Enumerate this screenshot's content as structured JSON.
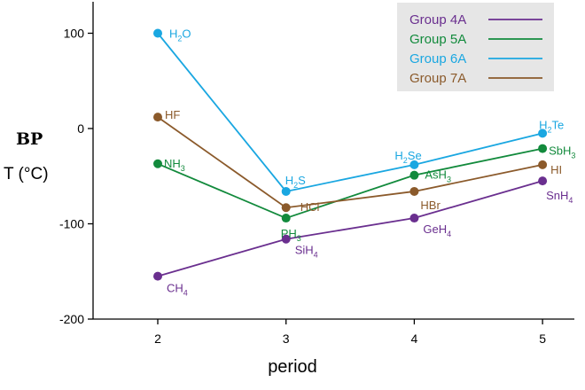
{
  "chart_data": {
    "type": "line",
    "title": "",
    "ylabel_line1": "BP",
    "ylabel_line2": "T (°C)",
    "xlabel": "period",
    "xlim": [
      1.5,
      5.2
    ],
    "ylim": [
      -200,
      133
    ],
    "x_ticks": [
      2,
      3,
      4,
      5
    ],
    "y_ticks": [
      100,
      0,
      -100,
      -200
    ],
    "grid": false,
    "legend_position": "top-right",
    "series": [
      {
        "name": "Group 4A",
        "color": "#6a2f8f",
        "points": [
          {
            "x": 2,
            "y": -155,
            "label": [
              "CH",
              "4",
              ""
            ]
          },
          {
            "x": 3,
            "y": -116,
            "label": [
              "SiH",
              "4",
              ""
            ]
          },
          {
            "x": 4,
            "y": -94,
            "label": [
              "GeH",
              "4",
              ""
            ]
          },
          {
            "x": 5,
            "y": -55,
            "label": [
              "SnH",
              "4",
              ""
            ]
          }
        ]
      },
      {
        "name": "Group 5A",
        "color": "#128a3c",
        "points": [
          {
            "x": 2,
            "y": -37,
            "label": [
              "NH",
              "3",
              ""
            ]
          },
          {
            "x": 3,
            "y": -94,
            "label": [
              "PH",
              "3",
              ""
            ]
          },
          {
            "x": 4,
            "y": -49,
            "label": [
              "AsH",
              "3",
              ""
            ]
          },
          {
            "x": 5,
            "y": -21,
            "label": [
              "SbH",
              "3",
              ""
            ]
          }
        ]
      },
      {
        "name": "Group 6A",
        "color": "#1aa7e1",
        "points": [
          {
            "x": 2,
            "y": 100,
            "label": [
              "H",
              "2",
              "O"
            ]
          },
          {
            "x": 3,
            "y": -66,
            "label": [
              "H",
              "2",
              "S"
            ]
          },
          {
            "x": 4,
            "y": -38,
            "label": [
              "H",
              "2",
              "Se"
            ]
          },
          {
            "x": 5,
            "y": -5,
            "label": [
              "H",
              "2",
              "Te"
            ]
          }
        ]
      },
      {
        "name": "Group 7A",
        "color": "#8b5a2b",
        "points": [
          {
            "x": 2,
            "y": 12,
            "label": [
              "HF",
              "",
              ""
            ]
          },
          {
            "x": 3,
            "y": -83,
            "label": [
              "HCl",
              "",
              ""
            ]
          },
          {
            "x": 4,
            "y": -66,
            "label": [
              "HBr",
              "",
              ""
            ]
          },
          {
            "x": 5,
            "y": -38,
            "label": [
              "HI",
              "",
              ""
            ]
          }
        ]
      }
    ]
  }
}
